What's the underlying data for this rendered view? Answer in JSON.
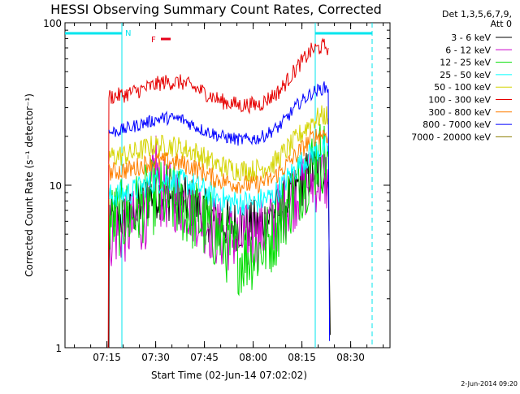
{
  "chart_data": {
    "type": "line",
    "title": "HESSI Observing Summary Count Rates, Corrected",
    "xlabel": "Start Time (02-Jun-14 07:02:02)",
    "ylabel": "Corrected Count Rate (s⁻¹ detector⁻¹)",
    "timestamp": "2-Jun-2014 09:20",
    "yscale": "log",
    "ylim": [
      1,
      100
    ],
    "xlim": [
      0,
      100
    ],
    "x_ticks": [
      {
        "x": 12.9,
        "label": "07:15"
      },
      {
        "x": 27.9,
        "label": "07:30"
      },
      {
        "x": 42.9,
        "label": "07:45"
      },
      {
        "x": 57.9,
        "label": "08:00"
      },
      {
        "x": 72.9,
        "label": "08:15"
      },
      {
        "x": 87.9,
        "label": "08:30"
      }
    ],
    "y_ticks": [
      {
        "y": 1,
        "label": "1"
      },
      {
        "y": 10,
        "label": "10"
      },
      {
        "y": 100,
        "label": "100"
      }
    ],
    "legend_header": [
      "Det 1,3,5,6,7,9,",
      "Att 0"
    ],
    "markers": {
      "night_label": "N",
      "flare_label": "F",
      "night_color": "#00e5ee",
      "flare_color": "#e6001a",
      "night_spans": [
        [
          0,
          17.5
        ],
        [
          77,
          94.5
        ]
      ],
      "night_boundaries": [
        17.5,
        77
      ],
      "night_dashed": [
        17.5,
        94.5
      ],
      "flare_span": [
        29.5,
        32.5
      ]
    },
    "series": [
      {
        "name": "3 - 6 keV",
        "color": "#000000",
        "jitter": 0.16,
        "points": [
          [
            13.5,
            1
          ],
          [
            13.6,
            6
          ],
          [
            20,
            6.5
          ],
          [
            27,
            9
          ],
          [
            33,
            8.5
          ],
          [
            40,
            7.5
          ],
          [
            46,
            6
          ],
          [
            54,
            5.6
          ],
          [
            60,
            5.8
          ],
          [
            66,
            7
          ],
          [
            72,
            10
          ],
          [
            76,
            12.5
          ],
          [
            80,
            12
          ],
          [
            81,
            11.5
          ],
          [
            81.6,
            1.2
          ]
        ]
      },
      {
        "name": "6 - 12 keV",
        "color": "#cc00cc",
        "jitter": 0.22,
        "points": [
          [
            13.5,
            5
          ],
          [
            20,
            5.5
          ],
          [
            26,
            7
          ],
          [
            28,
            15
          ],
          [
            29,
            9
          ],
          [
            36,
            8
          ],
          [
            42,
            6.5
          ],
          [
            47,
            5
          ],
          [
            54,
            4.6
          ],
          [
            60,
            5
          ],
          [
            66,
            6.5
          ],
          [
            72,
            9.5
          ],
          [
            77,
            11
          ],
          [
            80,
            11
          ],
          [
            81,
            10.5
          ]
        ]
      },
      {
        "name": "12 - 25 keV",
        "color": "#00dd00",
        "jitter": 0.24,
        "points": [
          [
            13.5,
            6
          ],
          [
            20,
            6.5
          ],
          [
            27,
            8.5
          ],
          [
            34,
            8
          ],
          [
            40,
            6.5
          ],
          [
            46,
            5.2
          ],
          [
            50,
            4.2
          ],
          [
            54,
            3.6
          ],
          [
            60,
            4
          ],
          [
            64,
            5
          ],
          [
            69,
            8
          ],
          [
            74,
            11.5
          ],
          [
            78,
            15
          ],
          [
            81,
            15
          ]
        ]
      },
      {
        "name": "25 - 50 keV",
        "color": "#00ffff",
        "jitter": 0.08,
        "points": [
          [
            13.5,
            8.5
          ],
          [
            20,
            9
          ],
          [
            27,
            10.5
          ],
          [
            33,
            10.8
          ],
          [
            40,
            10
          ],
          [
            46,
            8.5
          ],
          [
            52,
            7.8
          ],
          [
            58,
            7.8
          ],
          [
            64,
            8.5
          ],
          [
            70,
            12
          ],
          [
            76,
            16
          ],
          [
            80,
            17
          ],
          [
            81,
            16.5
          ]
        ]
      },
      {
        "name": "50 - 100 keV",
        "color": "#d4d400",
        "jitter": 0.07,
        "points": [
          [
            13.5,
            15
          ],
          [
            20,
            15.5
          ],
          [
            27,
            17.5
          ],
          [
            33,
            17.5
          ],
          [
            40,
            16
          ],
          [
            46,
            13.5
          ],
          [
            52,
            12.5
          ],
          [
            58,
            12.3
          ],
          [
            64,
            13.5
          ],
          [
            70,
            18
          ],
          [
            76,
            25
          ],
          [
            80,
            27
          ],
          [
            81,
            26
          ]
        ]
      },
      {
        "name": "100 - 300 keV",
        "color": "#e60000",
        "jitter": 0.05,
        "points": [
          [
            13.3,
            1
          ],
          [
            13.5,
            35
          ],
          [
            18,
            36
          ],
          [
            24,
            39
          ],
          [
            30,
            43
          ],
          [
            36,
            43
          ],
          [
            42,
            38
          ],
          [
            48,
            33
          ],
          [
            54,
            31
          ],
          [
            60,
            31.5
          ],
          [
            66,
            38
          ],
          [
            72,
            55
          ],
          [
            76,
            68
          ],
          [
            80,
            72
          ],
          [
            81,
            70
          ]
        ]
      },
      {
        "name": "300 - 800 keV",
        "color": "#ff7f00",
        "jitter": 0.06,
        "points": [
          [
            13.5,
            12
          ],
          [
            20,
            12.5
          ],
          [
            27,
            14
          ],
          [
            33,
            14
          ],
          [
            40,
            12.8
          ],
          [
            46,
            11
          ],
          [
            52,
            10.2
          ],
          [
            58,
            10
          ],
          [
            64,
            11
          ],
          [
            70,
            14.5
          ],
          [
            76,
            19.5
          ],
          [
            80,
            21
          ],
          [
            81,
            20
          ]
        ]
      },
      {
        "name": "800 - 7000 keV",
        "color": "#0000ff",
        "jitter": 0.04,
        "points": [
          [
            13.5,
            21
          ],
          [
            18,
            22
          ],
          [
            24,
            24
          ],
          [
            30,
            26
          ],
          [
            36,
            25.5
          ],
          [
            42,
            22
          ],
          [
            48,
            20
          ],
          [
            54,
            19
          ],
          [
            60,
            19.5
          ],
          [
            66,
            23
          ],
          [
            72,
            32
          ],
          [
            76,
            37
          ],
          [
            80,
            40
          ],
          [
            81,
            39
          ],
          [
            81.4,
            1.1
          ]
        ]
      },
      {
        "name": "7000 - 20000 keV",
        "color": "#8b7d00",
        "jitter": 0,
        "points": []
      }
    ]
  }
}
